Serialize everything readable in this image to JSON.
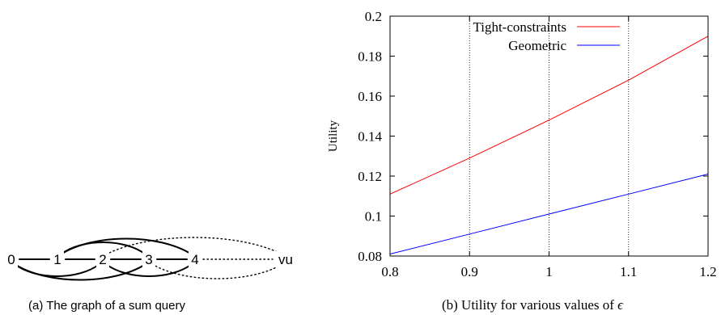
{
  "figure_a": {
    "nodes": [
      "0",
      "1",
      "2",
      "3",
      "4",
      "vu"
    ],
    "edges": [
      {
        "from": "0",
        "to": "1",
        "style": "solid"
      },
      {
        "from": "1",
        "to": "2",
        "style": "solid"
      },
      {
        "from": "2",
        "to": "3",
        "style": "solid"
      },
      {
        "from": "3",
        "to": "4",
        "style": "solid"
      },
      {
        "from": "0",
        "to": "2",
        "style": "solid"
      },
      {
        "from": "0",
        "to": "3",
        "style": "solid"
      },
      {
        "from": "1",
        "to": "3",
        "style": "solid"
      },
      {
        "from": "1",
        "to": "4",
        "style": "solid"
      },
      {
        "from": "2",
        "to": "4",
        "style": "solid"
      },
      {
        "from": "2",
        "to": "vu",
        "style": "dotted"
      },
      {
        "from": "3",
        "to": "vu",
        "style": "dotted"
      },
      {
        "from": "4",
        "to": "vu",
        "style": "dotted"
      }
    ],
    "caption": "(a)  The graph of a sum query"
  },
  "figure_b": {
    "caption_prefix": "(b)  Utility for various values of ",
    "caption_symbol": "ϵ"
  },
  "chart_data": {
    "type": "line",
    "title": "",
    "xlabel": "",
    "ylabel": "Utility",
    "xlim": [
      0.8,
      1.2
    ],
    "ylim": [
      0.08,
      0.2
    ],
    "x_ticks": [
      0.8,
      0.9,
      1,
      1.1,
      1.2
    ],
    "x_tick_labels": [
      "0.8",
      "0.9",
      "1",
      "1.1",
      "1.2"
    ],
    "y_ticks": [
      0.08,
      0.1,
      0.12,
      0.14,
      0.16,
      0.18,
      0.2
    ],
    "y_tick_labels": [
      "0.08",
      "0.1",
      "0.12",
      "0.14",
      "0.16",
      "0.18",
      "0.2"
    ],
    "vertical_reference_lines": [
      0.9,
      1,
      1.1
    ],
    "legend_position": "top-center",
    "series": [
      {
        "name": "Tight-constraints",
        "color": "#ff0000",
        "x": [
          0.8,
          0.9,
          1.0,
          1.1,
          1.2
        ],
        "y": [
          0.111,
          0.129,
          0.148,
          0.168,
          0.19
        ]
      },
      {
        "name": "Geometric",
        "color": "#0000ff",
        "x": [
          0.8,
          0.9,
          1.0,
          1.1,
          1.2
        ],
        "y": [
          0.081,
          0.091,
          0.101,
          0.111,
          0.121
        ]
      }
    ]
  }
}
